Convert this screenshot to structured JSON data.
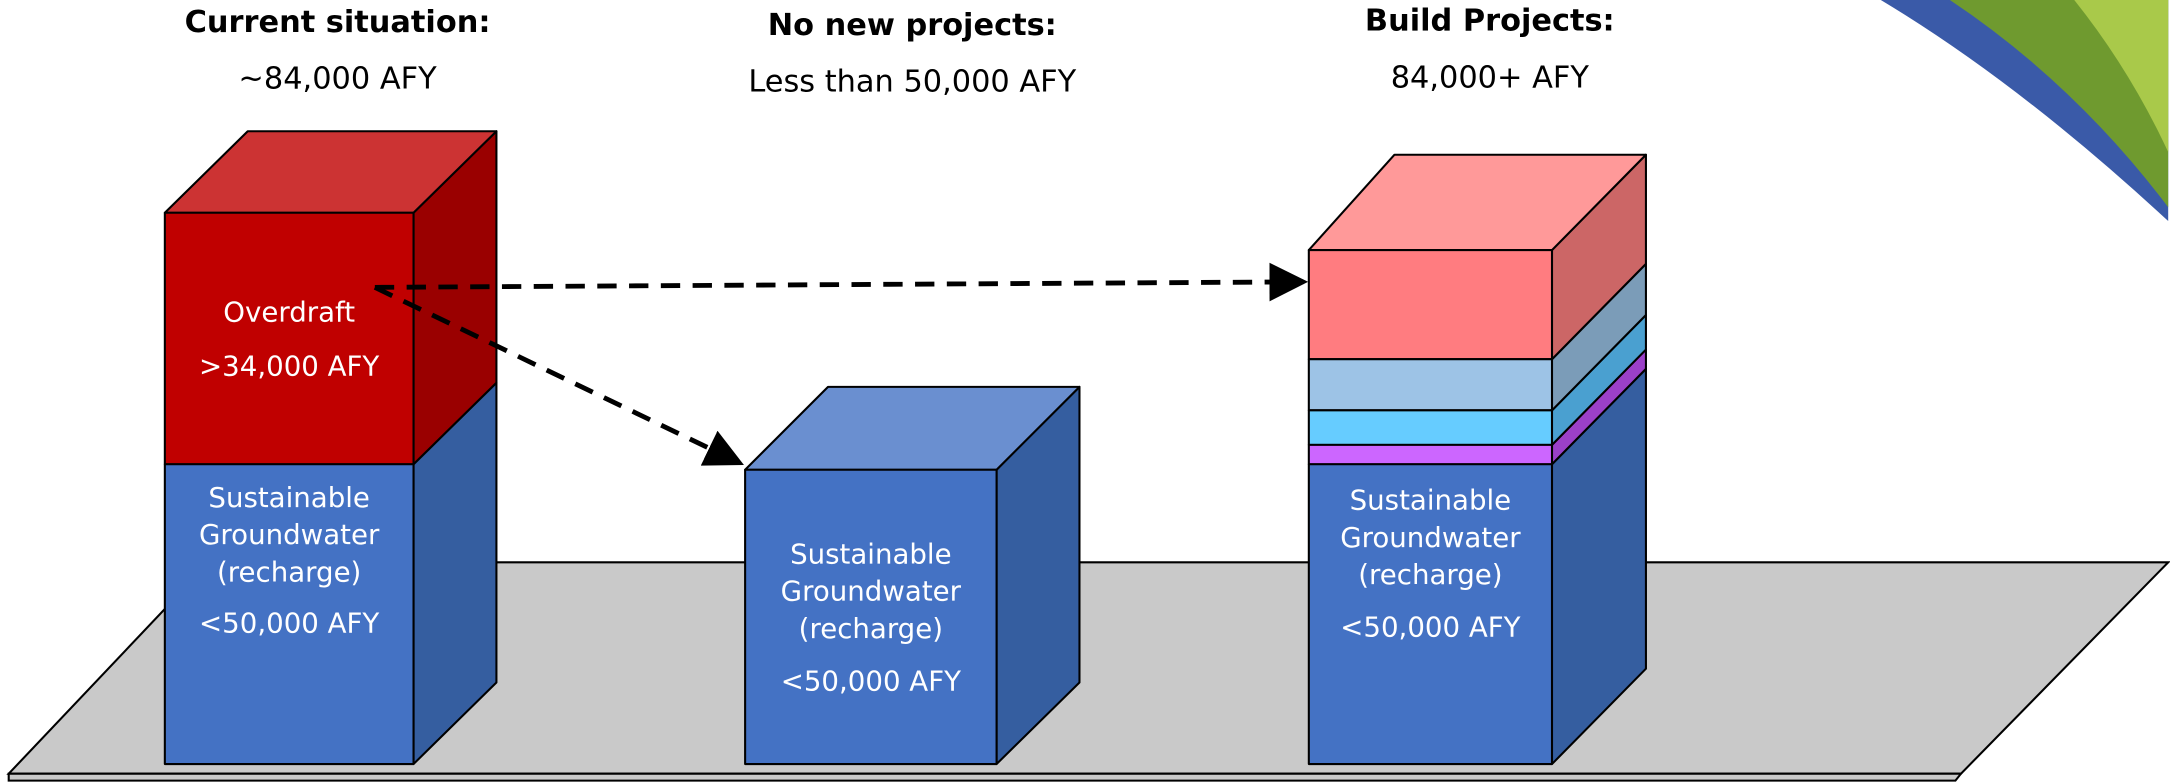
{
  "columns": [
    {
      "title": "Current situation:",
      "subtitle": "~84,000 AFY",
      "blocks": [
        {
          "lines": [
            "Overdraft",
            ">34,000 AFY"
          ]
        },
        {
          "lines": [
            "Sustainable",
            "Groundwater",
            "(recharge)",
            "<50,000 AFY"
          ]
        }
      ]
    },
    {
      "title": "No new projects:",
      "subtitle": "Less than 50,000 AFY",
      "blocks": [
        {
          "lines": [
            "Sustainable",
            "Groundwater",
            "(recharge)",
            "<50,000 AFY"
          ]
        }
      ]
    },
    {
      "title": "Build Projects:",
      "subtitle": "84,000+ AFY",
      "blocks": [
        {
          "lines": [
            "Sustainable",
            "Groundwater",
            "(recharge)",
            "<50,000 AFY"
          ]
        }
      ]
    }
  ]
}
